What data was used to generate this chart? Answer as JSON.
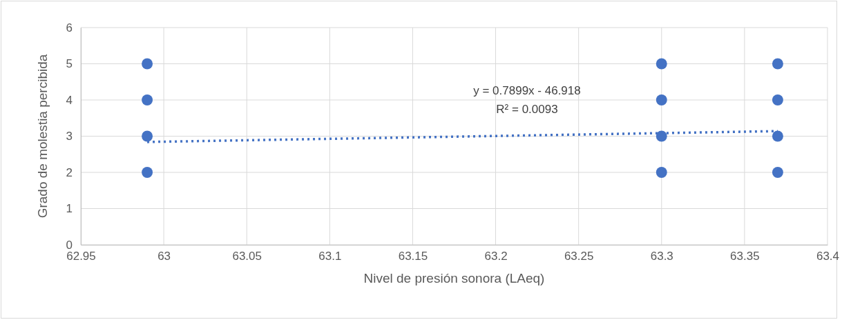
{
  "chart_data": {
    "type": "scatter",
    "xlabel": "Nivel de presión sonora (LAeq)",
    "ylabel": "Grado de molestia percibida",
    "x": [
      62.99,
      62.99,
      62.99,
      62.99,
      63.3,
      63.3,
      63.3,
      63.3,
      63.37,
      63.37,
      63.37,
      63.37
    ],
    "series": [
      {
        "color": "#4472c4",
        "values": [
          2,
          3,
          4,
          5,
          2,
          3,
          4,
          5,
          2,
          3,
          4,
          5
        ]
      },
      {
        "type": "line",
        "color": "#4472c4",
        "x": [
          62.99,
          63.37
        ],
        "values": [
          2.84,
          3.14
        ],
        "line_style": "dotted"
      }
    ],
    "xlim": [
      62.95,
      63.4
    ],
    "xticks": [
      62.95,
      63,
      63.05,
      63.1,
      63.15,
      63.2,
      63.25,
      63.3,
      63.35,
      63.4
    ],
    "ylim": [
      0,
      6
    ],
    "yticks": [
      0,
      1,
      2,
      3,
      4,
      5,
      6
    ],
    "grid": true,
    "annotations": [
      "y = 0.7899x - 46.918",
      "R² = 0.0093"
    ]
  }
}
